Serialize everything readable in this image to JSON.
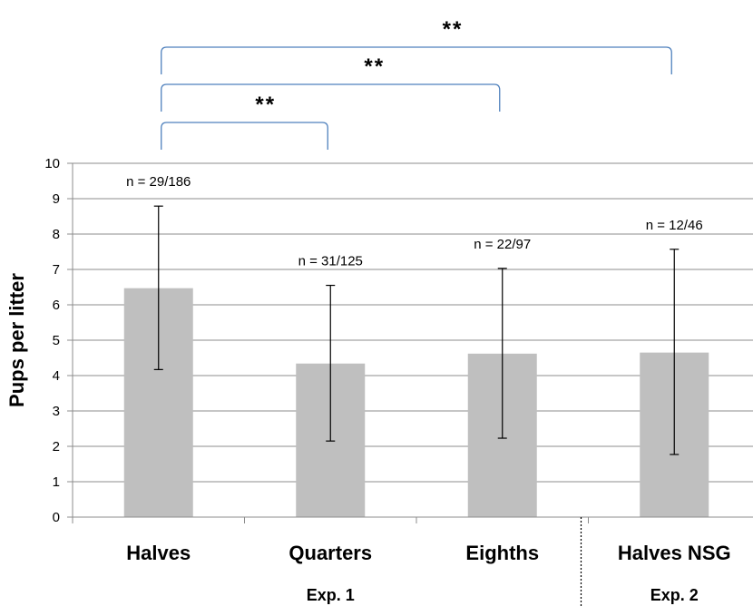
{
  "chart_data": {
    "type": "bar",
    "title": "",
    "xlabel": "",
    "ylabel": "Pups per litter",
    "ylim": [
      0,
      10
    ],
    "yticks": [
      0,
      1,
      2,
      3,
      4,
      5,
      6,
      7,
      8,
      9,
      10
    ],
    "grid": "horizontal",
    "categories": [
      "Halves",
      "Quarters",
      "Eighths",
      "Halves NSG"
    ],
    "values": [
      6.47,
      4.34,
      4.62,
      4.65
    ],
    "error_low": [
      4.17,
      2.15,
      2.23,
      1.77
    ],
    "error_high": [
      8.79,
      6.55,
      7.03,
      7.57
    ],
    "n_labels": [
      "n = 29/186",
      "n = 31/125",
      "n = 22/97",
      "n = 12/46"
    ],
    "bar_color": "#bfbfbf",
    "bracket_color": "#4f81bd",
    "groups": [
      {
        "label": "Exp. 1",
        "categories": [
          "Halves",
          "Quarters",
          "Eighths"
        ]
      },
      {
        "label": "Exp. 2",
        "categories": [
          "Halves NSG"
        ]
      }
    ],
    "significance": [
      {
        "from": "Halves",
        "to": "Quarters",
        "label": "**"
      },
      {
        "from": "Halves",
        "to": "Eighths",
        "label": "**"
      },
      {
        "from": "Halves",
        "to": "Halves NSG",
        "label": "**"
      }
    ]
  }
}
